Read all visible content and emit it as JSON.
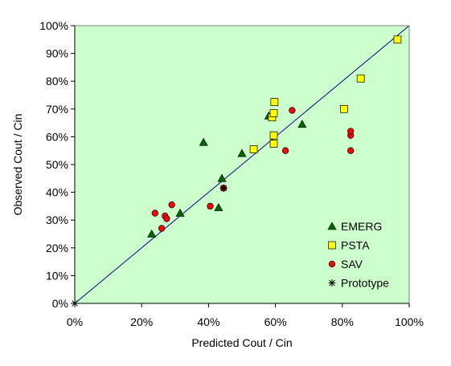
{
  "chart_data": {
    "type": "scatter",
    "xlabel": "Predicted Cout / Cin",
    "ylabel": "Observed Cout / Cin",
    "xlim": [
      0,
      1
    ],
    "ylim": [
      0,
      1
    ],
    "xticks": [
      "0%",
      "20%",
      "40%",
      "60%",
      "80%",
      "100%"
    ],
    "yticks": [
      "0%",
      "10%",
      "20%",
      "30%",
      "40%",
      "50%",
      "60%",
      "70%",
      "80%",
      "90%",
      "100%"
    ],
    "grid": false,
    "reference_line": {
      "x": [
        0,
        1
      ],
      "y": [
        0,
        1
      ]
    },
    "legend_position": "bottom-right",
    "colors": {
      "plot_background": "#ccffcc",
      "emerg": "#006600",
      "psta": "#ffff00",
      "sav": "#ff0000",
      "prototype": "#000000",
      "line": "#000080"
    },
    "series": [
      {
        "name": "EMERG",
        "marker": "triangle",
        "points": [
          {
            "x": 0.23,
            "y": 0.25
          },
          {
            "x": 0.315,
            "y": 0.325
          },
          {
            "x": 0.385,
            "y": 0.58
          },
          {
            "x": 0.43,
            "y": 0.345
          },
          {
            "x": 0.44,
            "y": 0.45
          },
          {
            "x": 0.5,
            "y": 0.54
          },
          {
            "x": 0.58,
            "y": 0.675
          },
          {
            "x": 0.68,
            "y": 0.645
          }
        ]
      },
      {
        "name": "PSTA",
        "marker": "square",
        "points": [
          {
            "x": 0.535,
            "y": 0.555
          },
          {
            "x": 0.59,
            "y": 0.67
          },
          {
            "x": 0.595,
            "y": 0.575
          },
          {
            "x": 0.595,
            "y": 0.605
          },
          {
            "x": 0.595,
            "y": 0.685
          },
          {
            "x": 0.597,
            "y": 0.725
          },
          {
            "x": 0.805,
            "y": 0.7
          },
          {
            "x": 0.855,
            "y": 0.81
          },
          {
            "x": 0.965,
            "y": 0.95
          }
        ]
      },
      {
        "name": "SAV",
        "marker": "circle",
        "points": [
          {
            "x": 0.24,
            "y": 0.325
          },
          {
            "x": 0.26,
            "y": 0.27
          },
          {
            "x": 0.27,
            "y": 0.315
          },
          {
            "x": 0.275,
            "y": 0.305
          },
          {
            "x": 0.29,
            "y": 0.355
          },
          {
            "x": 0.405,
            "y": 0.35
          },
          {
            "x": 0.445,
            "y": 0.415
          },
          {
            "x": 0.63,
            "y": 0.55
          },
          {
            "x": 0.65,
            "y": 0.695
          },
          {
            "x": 0.825,
            "y": 0.55
          },
          {
            "x": 0.825,
            "y": 0.605
          },
          {
            "x": 0.825,
            "y": 0.62
          }
        ]
      },
      {
        "name": "Prototype",
        "marker": "asterisk",
        "points": [
          {
            "x": 0.0,
            "y": 0.0
          },
          {
            "x": 0.445,
            "y": 0.415
          }
        ]
      }
    ]
  }
}
